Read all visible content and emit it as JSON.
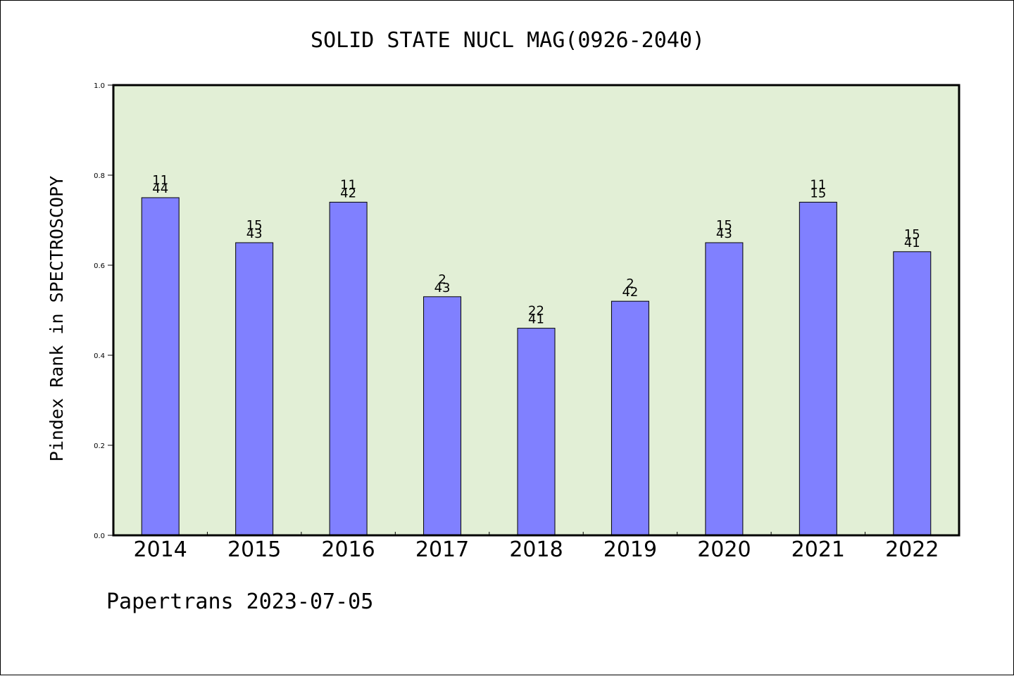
{
  "chart_data": {
    "type": "bar",
    "title": "SOLID STATE NUCL MAG(0926-2040)",
    "ylabel": "Pindex Rank in SPECTROSCOPY",
    "xlabel": "",
    "footer": "Papertrans 2023-07-05",
    "categories": [
      "2014",
      "2015",
      "2016",
      "2017",
      "2018",
      "2019",
      "2020",
      "2021",
      "2022"
    ],
    "values": [
      0.75,
      0.65,
      0.74,
      0.53,
      0.46,
      0.52,
      0.65,
      0.74,
      0.63
    ],
    "label_top": [
      "11",
      "15",
      "11",
      "2",
      "22",
      "2",
      "15",
      "11",
      "15"
    ],
    "label_bottom": [
      "44",
      "43",
      "42",
      "43",
      "41",
      "42",
      "43",
      "15",
      "41"
    ],
    "ylim": [
      0,
      1.0
    ],
    "yticks": [
      "0.0",
      "0.2",
      "0.4",
      "0.6",
      "0.8",
      "1.0"
    ],
    "grid": false,
    "colors": {
      "bar": "#8080ff",
      "plot_background": "#e2efd6"
    }
  }
}
